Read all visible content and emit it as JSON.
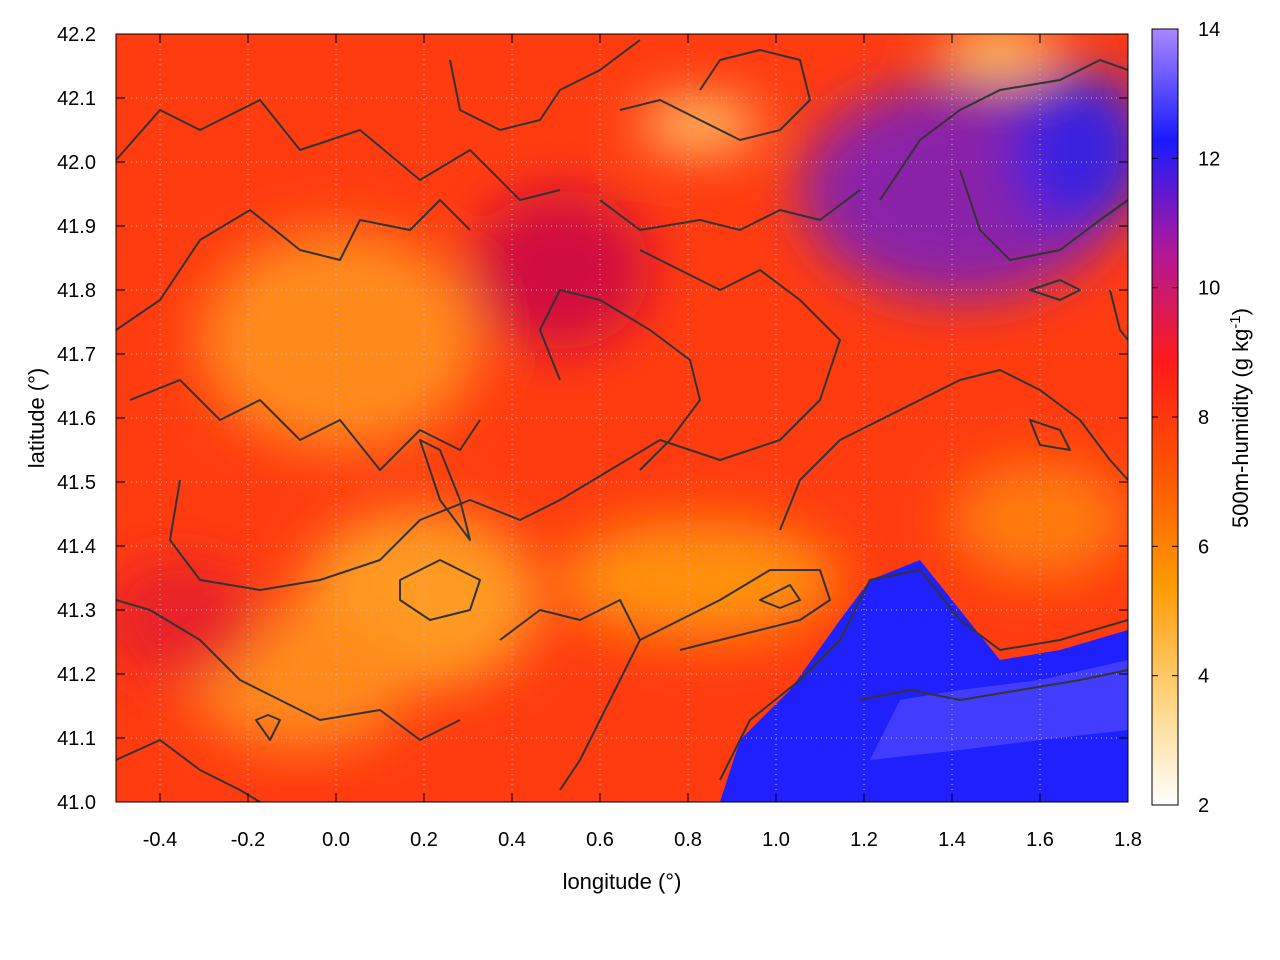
{
  "chart_data": {
    "type": "heatmap",
    "title": "",
    "xlabel": "longitude (°)",
    "ylabel": "latitude (°)",
    "xlim": [
      -0.5,
      1.8
    ],
    "ylim": [
      41.0,
      42.2
    ],
    "x_ticks": [
      -0.4,
      -0.2,
      0.0,
      0.2,
      0.4,
      0.6,
      0.8,
      1.0,
      1.2,
      1.4,
      1.6,
      1.8
    ],
    "x_tick_labels": [
      "-0.4",
      "-0.2",
      "0.0",
      "0.2",
      "0.4",
      "0.6",
      "0.8",
      "1.0",
      "1.2",
      "1.4",
      "1.6",
      "1.8"
    ],
    "y_ticks": [
      41.0,
      41.1,
      41.2,
      41.3,
      41.4,
      41.5,
      41.6,
      41.7,
      41.8,
      41.9,
      42.0,
      42.1,
      42.2
    ],
    "y_tick_labels": [
      "41.0",
      "41.1",
      "41.2",
      "41.3",
      "41.4",
      "41.5",
      "41.6",
      "41.7",
      "41.8",
      "41.9",
      "42.0",
      "42.1",
      "42.2"
    ],
    "grid": true,
    "colorbar": {
      "label_main": "500m-humidity (g kg",
      "label_sup": "-1",
      "label_end": ")",
      "range": [
        2,
        14
      ],
      "ticks": [
        2,
        4,
        6,
        8,
        10,
        12,
        14
      ],
      "tick_labels": [
        "2",
        "4",
        "6",
        "8",
        "10",
        "12",
        "14"
      ],
      "colors": [
        "#ffffff",
        "#ffd27a",
        "#ff9900",
        "#ff5500",
        "#ff1a1a",
        "#b0189a",
        "#1a1aff",
        "#aa88ff"
      ]
    },
    "overlay": "contour lines (terrain)",
    "colors": {
      "contour": "#333333",
      "frame": "#000000",
      "grid": "#bbbbbb"
    }
  }
}
